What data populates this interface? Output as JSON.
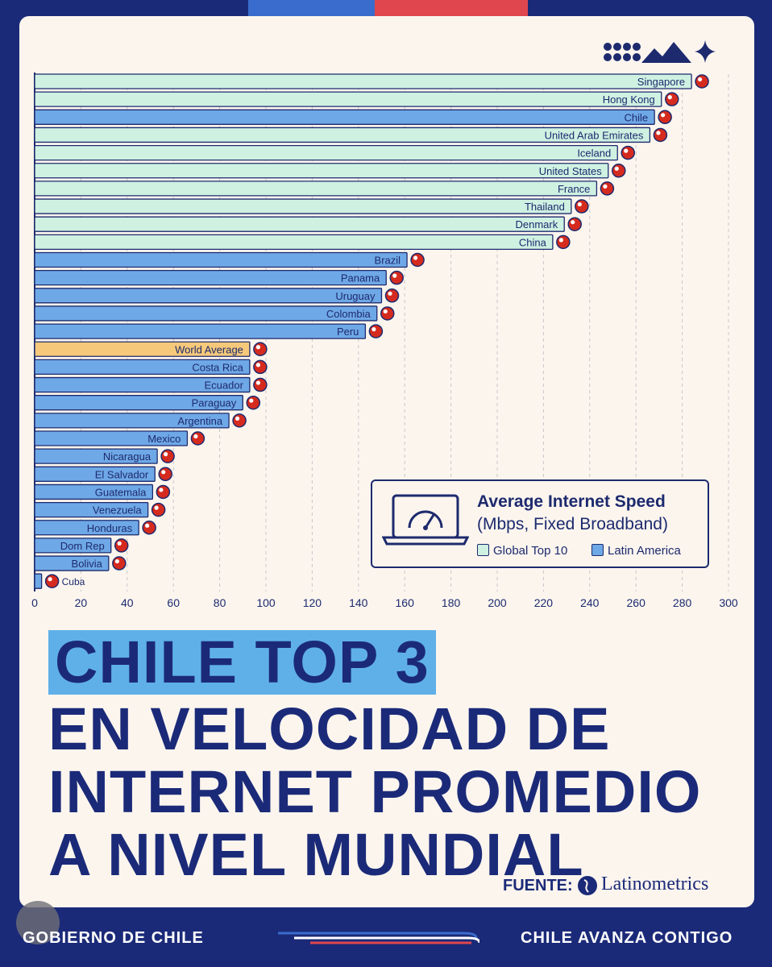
{
  "colors": {
    "top10": "#cff1e2",
    "latam": "#6fa8e6",
    "world": "#f6c97a",
    "outline": "#1d2a6e",
    "card_bg": "#fbf5ee",
    "page_bg": "#1b2a78",
    "highlight": "#5fb0e9",
    "flag_red": "#d52b1e",
    "flag_blue": "#2e4a9e"
  },
  "chart_data": {
    "type": "bar",
    "orientation": "horizontal",
    "xlim": [
      0,
      300
    ],
    "xticks": [
      "0",
      "20",
      "40",
      "60",
      "80",
      "100",
      "120",
      "140",
      "160",
      "180",
      "200",
      "220",
      "240",
      "260",
      "280",
      "300"
    ],
    "grid": "vertical dashed",
    "bars": [
      {
        "label": "Singapore",
        "value": 284,
        "group": "top10"
      },
      {
        "label": "Hong Kong",
        "value": 271,
        "group": "top10"
      },
      {
        "label": "Chile",
        "value": 268,
        "group": "latam"
      },
      {
        "label": "United Arab Emirates",
        "value": 266,
        "group": "top10"
      },
      {
        "label": "Iceland",
        "value": 252,
        "group": "top10"
      },
      {
        "label": "United States",
        "value": 248,
        "group": "top10"
      },
      {
        "label": "France",
        "value": 243,
        "group": "top10"
      },
      {
        "label": "Thailand",
        "value": 232,
        "group": "top10"
      },
      {
        "label": "Denmark",
        "value": 229,
        "group": "top10"
      },
      {
        "label": "China",
        "value": 224,
        "group": "top10"
      },
      {
        "label": "Brazil",
        "value": 161,
        "group": "latam"
      },
      {
        "label": "Panama",
        "value": 152,
        "group": "latam"
      },
      {
        "label": "Uruguay",
        "value": 150,
        "group": "latam"
      },
      {
        "label": "Colombia",
        "value": 148,
        "group": "latam"
      },
      {
        "label": "Peru",
        "value": 143,
        "group": "latam"
      },
      {
        "label": "World Average",
        "value": 93,
        "group": "world"
      },
      {
        "label": "Costa Rica",
        "value": 93,
        "group": "latam"
      },
      {
        "label": "Ecuador",
        "value": 93,
        "group": "latam"
      },
      {
        "label": "Paraguay",
        "value": 90,
        "group": "latam"
      },
      {
        "label": "Argentina",
        "value": 84,
        "group": "latam"
      },
      {
        "label": "Mexico",
        "value": 66,
        "group": "latam"
      },
      {
        "label": "Nicaragua",
        "value": 53,
        "group": "latam"
      },
      {
        "label": "El Salvador",
        "value": 52,
        "group": "latam"
      },
      {
        "label": "Guatemala",
        "value": 51,
        "group": "latam"
      },
      {
        "label": "Venezuela",
        "value": 49,
        "group": "latam"
      },
      {
        "label": "Honduras",
        "value": 45,
        "group": "latam"
      },
      {
        "label": "Dom Rep",
        "value": 33,
        "group": "latam"
      },
      {
        "label": "Bolivia",
        "value": 32,
        "group": "latam"
      },
      {
        "label": "Cuba",
        "value": 3,
        "group": "latam"
      }
    ]
  },
  "legend": {
    "title": "Average Internet Speed",
    "subtitle": "(Mbps, Fixed Broadband)",
    "items": [
      {
        "label": "Global Top 10",
        "group": "top10"
      },
      {
        "label": "Latin America",
        "group": "latam"
      }
    ]
  },
  "headline": {
    "highlight": "CHILE TOP 3",
    "lines": [
      "EN VELOCIDAD DE",
      "INTERNET PROMEDIO",
      "A NIVEL MUNDIAL"
    ]
  },
  "source": {
    "label": "FUENTE:",
    "name": "Latinometrics"
  },
  "footer": {
    "left": "GOBIERNO DE CHILE",
    "right": "CHILE AVANZA CONTIGO"
  }
}
